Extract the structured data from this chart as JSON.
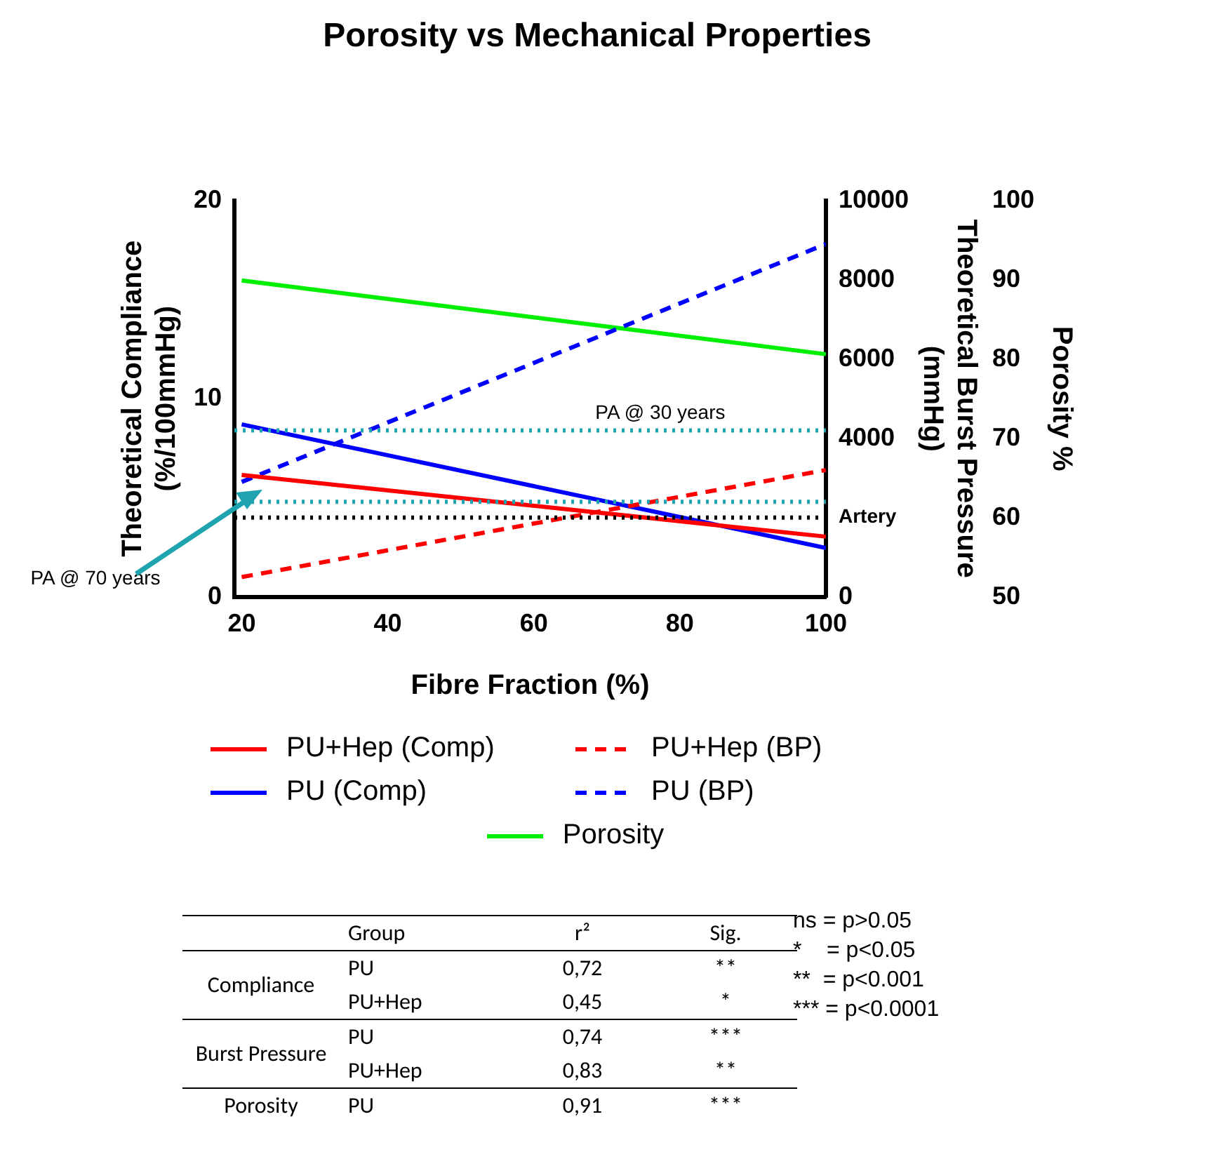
{
  "chart_data": [
    {
      "type": "line",
      "title": "Porosity vs Mechanical Properties",
      "xlabel": "Fibre Fraction (%)",
      "ylabel": "Theoretical Compliance (%/100mmHg)",
      "y2label": "Theoretical Burst Pressure (mmHg)",
      "y3label": "Porosity %",
      "x": [
        20,
        100
      ],
      "xlim": [
        19,
        100
      ],
      "xticks": [
        20,
        40,
        60,
        80,
        100
      ],
      "ylim": [
        0,
        20
      ],
      "yticks": [
        0,
        10,
        20
      ],
      "y2lim": [
        0,
        10000
      ],
      "y2ticks": [
        0,
        {
          "value": 2000,
          "label": "Artery"
        },
        4000,
        6000,
        8000,
        10000
      ],
      "y3lim": [
        50,
        100
      ],
      "y3ticks": [
        50,
        60,
        70,
        80,
        90,
        100
      ],
      "series": [
        {
          "name": "PU+Hep (Comp)",
          "color": "#ff0000",
          "values": [
            6.15,
            3.04
          ]
        },
        {
          "name": "PU+Hep (BP)",
          "color": "#ff0000",
          "line_style": "dashed",
          "axis": "y2",
          "values": [
            500,
            3200
          ]
        },
        {
          "name": "PU  (Comp)",
          "color": "#0000ff",
          "values": [
            8.7,
            2.47
          ]
        },
        {
          "name": "PU (BP)",
          "color": "#0000ff",
          "line_style": "dashed",
          "axis": "y2",
          "values": [
            2900,
            8900
          ]
        },
        {
          "name": "Porosity",
          "color": "#00ee00",
          "axis": "y3",
          "values": [
            89.9,
            80.6
          ]
        }
      ],
      "ref_lines": [
        {
          "axis": "y2",
          "value": 4200,
          "label": "PA @ 30 years",
          "color": "#1fa3b0",
          "line_style": "dotted"
        },
        {
          "axis": "y2",
          "value": 2400,
          "label": "PA @ 70 years",
          "color": "#1fa3b0",
          "line_style": "dotted"
        },
        {
          "axis": "y2",
          "value": 2000,
          "color": "#000000",
          "line_style": "dotted"
        }
      ],
      "grid": false,
      "legend": "bottom",
      "marker": "none"
    },
    {
      "type": "other",
      "annotations": [
        "Group",
        "r²",
        "Sig.",
        "Compliance",
        "PU",
        "0,72",
        "**",
        "PU+Hep",
        "0,45",
        "*",
        "Burst Pressure",
        "PU",
        "0,74",
        "***",
        "PU+Hep",
        "0,83",
        "**",
        "Porosity",
        "PU",
        "0,91",
        "***",
        "ns = p>0.05",
        "*    = p<0.05",
        "**  = p<0.001",
        "*** = p<0.0001"
      ]
    }
  ]
}
